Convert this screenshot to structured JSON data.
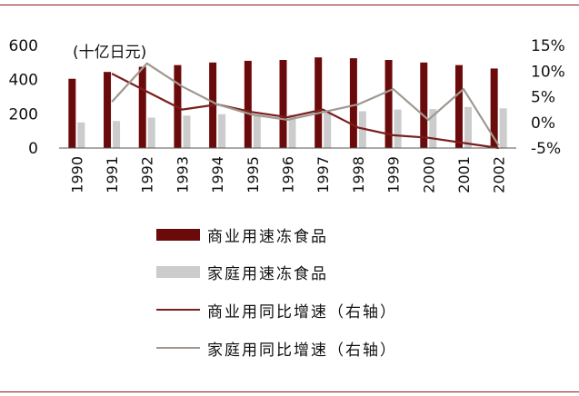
{
  "chart_data": {
    "type": "bar",
    "unit_label": "(十亿日元)",
    "categories": [
      "1990",
      "1991",
      "1992",
      "1993",
      "1994",
      "1995",
      "1996",
      "1997",
      "1998",
      "1999",
      "2000",
      "2001",
      "2002"
    ],
    "series": [
      {
        "name": "商业用速冻食品",
        "kind": "bar",
        "axis": "left",
        "color": "#6b0a0a",
        "values": [
          405,
          445,
          475,
          485,
          500,
          510,
          515,
          530,
          525,
          515,
          500,
          485,
          465
        ]
      },
      {
        "name": "家庭用速冻食品",
        "kind": "bar",
        "axis": "left",
        "color": "#cccccc",
        "values": [
          150,
          158,
          178,
          190,
          198,
          195,
          195,
          210,
          215,
          225,
          228,
          240,
          232
        ]
      },
      {
        "name": "商业用同比增速（右轴）",
        "kind": "line",
        "axis": "right",
        "color": "#7a1e1e",
        "values": [
          null,
          9.5,
          6.0,
          2.5,
          3.5,
          2.0,
          1.0,
          2.5,
          -1.0,
          -2.5,
          -3.0,
          -4.0,
          -5.0
        ]
      },
      {
        "name": "家庭用同比增速（右轴）",
        "kind": "line",
        "axis": "right",
        "color": "#a09890",
        "values": [
          null,
          4.0,
          11.5,
          7.0,
          3.5,
          1.5,
          0.5,
          2.0,
          3.5,
          6.5,
          0.5,
          6.5,
          -4.5
        ]
      }
    ],
    "y_left": {
      "ticks": [
        0,
        200,
        400,
        600
      ],
      "lim": [
        0,
        600
      ]
    },
    "y_right": {
      "ticks": [
        "-5%",
        "0%",
        "5%",
        "10%",
        "15%"
      ],
      "values": [
        -5,
        0,
        5,
        10,
        15
      ],
      "lim": [
        -5,
        15
      ]
    },
    "grid": false,
    "legend_position": "bottom"
  }
}
